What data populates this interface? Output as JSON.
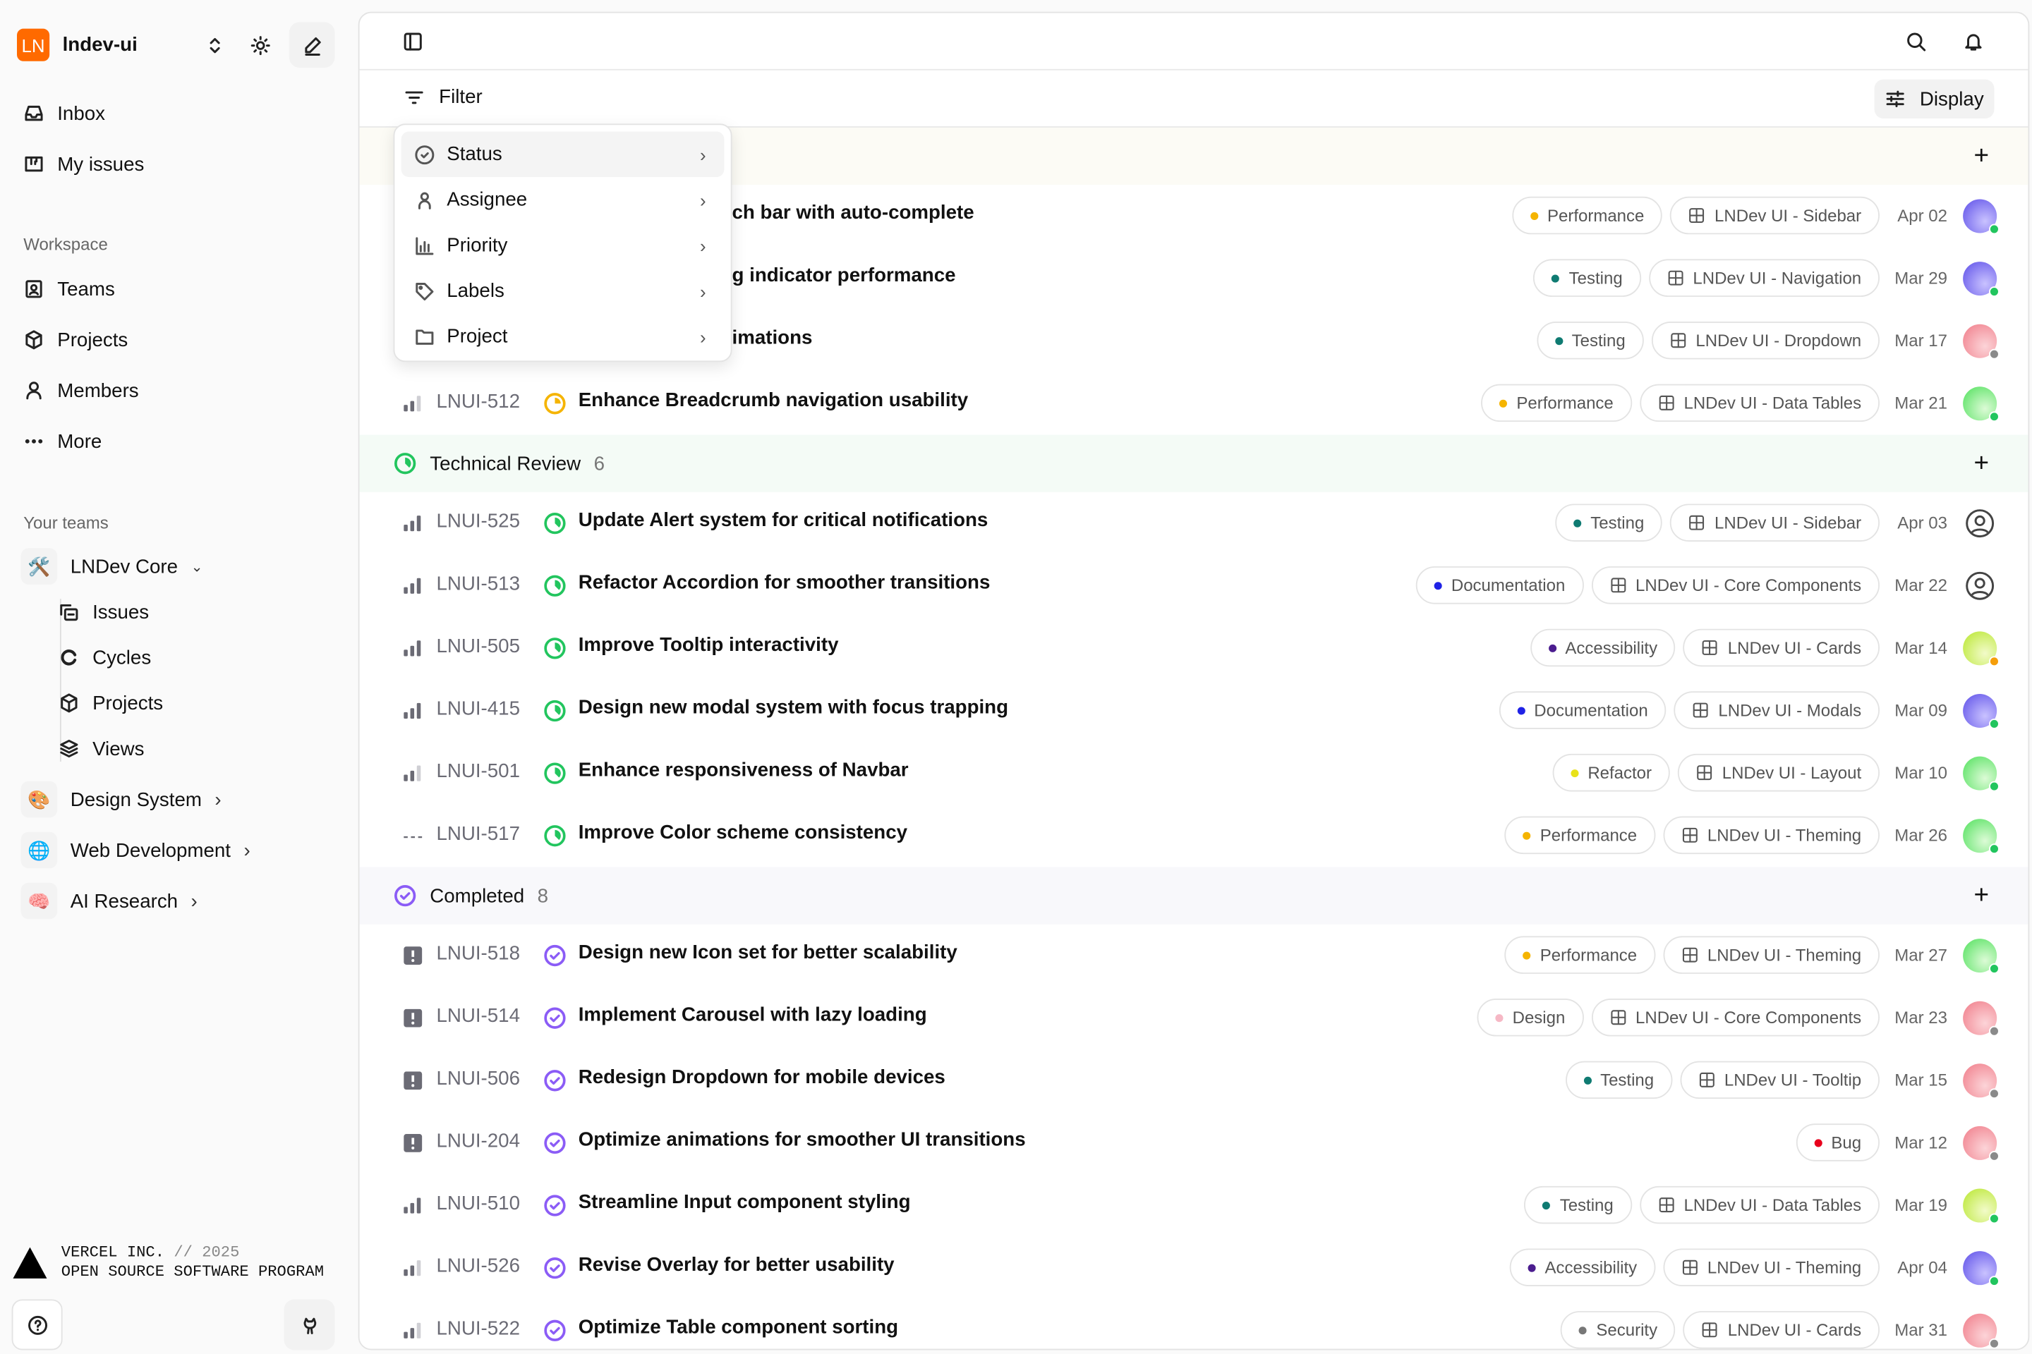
{
  "workspace": {
    "logo": "LN",
    "name": "lndev-ui",
    "brand_color": "#ff6a00"
  },
  "sidebar": {
    "nav": [
      {
        "label": "Inbox",
        "icon": "inbox-icon"
      },
      {
        "label": "My issues",
        "icon": "my-issues-icon"
      }
    ],
    "workspace_label": "Workspace",
    "workspace_items": [
      {
        "label": "Teams",
        "icon": "teams-icon"
      },
      {
        "label": "Projects",
        "icon": "projects-icon"
      },
      {
        "label": "Members",
        "icon": "members-icon"
      },
      {
        "label": "More",
        "icon": "more-icon"
      }
    ],
    "teams_label": "Your teams",
    "teams": [
      {
        "name": "LNDev Core",
        "emoji": "🛠️",
        "expanded": true,
        "children": [
          {
            "label": "Issues",
            "icon": "issues-icon"
          },
          {
            "label": "Cycles",
            "icon": "cycles-icon"
          },
          {
            "label": "Projects",
            "icon": "projects-icon"
          },
          {
            "label": "Views",
            "icon": "views-icon"
          }
        ]
      },
      {
        "name": "Design System",
        "emoji": "🎨"
      },
      {
        "name": "Web Development",
        "emoji": "🌐"
      },
      {
        "name": "AI Research",
        "emoji": "🧠"
      }
    ],
    "footer": {
      "company": "VERCEL INC.",
      "sep": "//",
      "year": "2025",
      "program": "OPEN SOURCE SOFTWARE PROGRAM"
    }
  },
  "toolbar": {
    "filter_label": "Filter",
    "display_label": "Display"
  },
  "filter_menu": {
    "items": [
      {
        "label": "Status",
        "icon": "status-icon",
        "active": true
      },
      {
        "label": "Assignee",
        "icon": "assignee-icon"
      },
      {
        "label": "Priority",
        "icon": "priority-icon"
      },
      {
        "label": "Labels",
        "icon": "labels-icon"
      },
      {
        "label": "Project",
        "icon": "project-icon"
      }
    ]
  },
  "label_colors": {
    "Performance": "#f5b400",
    "Testing": "#0f7b72",
    "Documentation": "#1f22e6",
    "Accessibility": "#4b1d8f",
    "Refactor": "#e8e21a",
    "Design": "#f6b8c5",
    "Bug": "#e8001c",
    "Security": "#777777"
  },
  "groups": [
    {
      "name": "",
      "count": "",
      "status": "in-progress",
      "rows": [
        {
          "id": "",
          "priority": "",
          "status": "in-progress",
          "title": "ch bar with auto-complete",
          "label": "Performance",
          "project": "LNDev UI - Sidebar",
          "date": "Apr 02",
          "avatar": "purple",
          "presence": "online"
        },
        {
          "id": "",
          "priority": "",
          "status": "in-progress",
          "title": "g indicator performance",
          "label": "Testing",
          "project": "LNDev UI - Navigation",
          "date": "Mar 29",
          "avatar": "purple",
          "presence": "online"
        },
        {
          "id": "",
          "priority": "",
          "status": "in-progress",
          "title": "imations",
          "label": "Testing",
          "project": "LNDev UI - Dropdown",
          "date": "Mar 17",
          "avatar": "pink",
          "presence": "offline"
        },
        {
          "id": "LNUI-512",
          "priority": "medium",
          "status": "in-progress",
          "title": "Enhance Breadcrumb navigation usability",
          "label": "Performance",
          "project": "LNDev UI - Data Tables",
          "date": "Mar 21",
          "avatar": "green",
          "presence": "online"
        }
      ]
    },
    {
      "name": "Technical Review",
      "count": "6",
      "status": "technical-review",
      "rows": [
        {
          "id": "LNUI-525",
          "priority": "high",
          "status": "technical-review",
          "title": "Update Alert system for critical notifications",
          "label": "Testing",
          "project": "LNDev UI - Sidebar",
          "date": "Apr 03",
          "avatar": "unassigned"
        },
        {
          "id": "LNUI-513",
          "priority": "high",
          "status": "technical-review",
          "title": "Refactor Accordion for smoother transitions",
          "label": "Documentation",
          "project": "LNDev UI - Core Components",
          "date": "Mar 22",
          "avatar": "unassigned"
        },
        {
          "id": "LNUI-505",
          "priority": "high",
          "status": "technical-review",
          "title": "Improve Tooltip interactivity",
          "label": "Accessibility",
          "project": "LNDev UI - Cards",
          "date": "Mar 14",
          "avatar": "yellow",
          "presence": "away"
        },
        {
          "id": "LNUI-415",
          "priority": "high",
          "status": "technical-review",
          "title": "Design new modal system with focus trapping",
          "label": "Documentation",
          "project": "LNDev UI - Modals",
          "date": "Mar 09",
          "avatar": "purple",
          "presence": "online"
        },
        {
          "id": "LNUI-501",
          "priority": "medium",
          "status": "technical-review",
          "title": "Enhance responsiveness of Navbar",
          "label": "Refactor",
          "project": "LNDev UI - Layout",
          "date": "Mar 10",
          "avatar": "green",
          "presence": "online"
        },
        {
          "id": "LNUI-517",
          "priority": "none",
          "status": "technical-review",
          "title": "Improve Color scheme consistency",
          "label": "Performance",
          "project": "LNDev UI - Theming",
          "date": "Mar 26",
          "avatar": "green",
          "presence": "online"
        }
      ]
    },
    {
      "name": "Completed",
      "count": "8",
      "status": "completed",
      "rows": [
        {
          "id": "LNUI-518",
          "priority": "urgent",
          "status": "completed",
          "title": "Design new Icon set for better scalability",
          "label": "Performance",
          "project": "LNDev UI - Theming",
          "date": "Mar 27",
          "avatar": "green",
          "presence": "online"
        },
        {
          "id": "LNUI-514",
          "priority": "urgent",
          "status": "completed",
          "title": "Implement Carousel with lazy loading",
          "label": "Design",
          "project": "LNDev UI - Core Components",
          "date": "Mar 23",
          "avatar": "pink",
          "presence": "offline"
        },
        {
          "id": "LNUI-506",
          "priority": "urgent",
          "status": "completed",
          "title": "Redesign Dropdown for mobile devices",
          "label": "Testing",
          "project": "LNDev UI - Tooltip",
          "date": "Mar 15",
          "avatar": "pink",
          "presence": "offline"
        },
        {
          "id": "LNUI-204",
          "priority": "urgent",
          "status": "completed",
          "title": "Optimize animations for smoother UI transitions",
          "label": "Bug",
          "project": "",
          "date": "Mar 12",
          "avatar": "pink",
          "presence": "offline"
        },
        {
          "id": "LNUI-510",
          "priority": "high",
          "status": "completed",
          "title": "Streamline Input component styling",
          "label": "Testing",
          "project": "LNDev UI - Data Tables",
          "date": "Mar 19",
          "avatar": "yellow",
          "presence": "online"
        },
        {
          "id": "LNUI-526",
          "priority": "medium",
          "status": "completed",
          "title": "Revise Overlay for better usability",
          "label": "Accessibility",
          "project": "LNDev UI - Theming",
          "date": "Apr 04",
          "avatar": "purple",
          "presence": "online"
        },
        {
          "id": "LNUI-522",
          "priority": "medium",
          "status": "completed",
          "title": "Optimize Table component sorting",
          "label": "Security",
          "project": "LNDev UI - Cards",
          "date": "Mar 31",
          "avatar": "pink",
          "presence": "offline"
        }
      ]
    }
  ]
}
